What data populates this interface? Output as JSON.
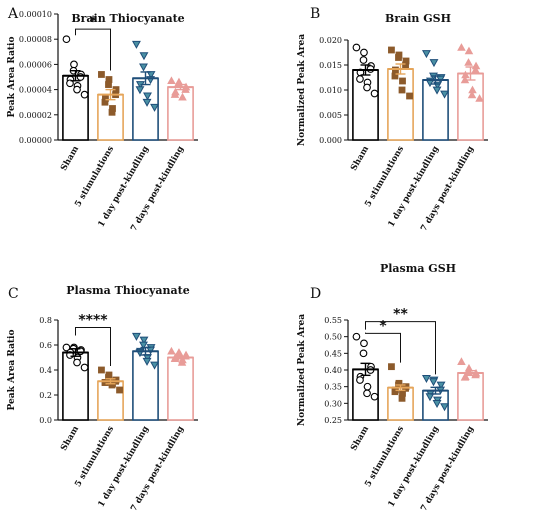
{
  "colors": {
    "Sham": "#000000",
    "5 stimulations": "#E5A55A",
    "1 day post-kindling": "#1F4E79",
    "7 days post-kindling": "#E89C98",
    "marker_brown": "#8C5A2B",
    "marker_teal": "#4A90A4",
    "marker_pink": "#E89C98",
    "marker_white": "#FFFFFF"
  },
  "chart_data": [
    {
      "type": "bar",
      "panel": "A",
      "title": "Brain Thiocyanate",
      "ylabel": "Peak Area Ratio",
      "ylim": [
        0,
        0.0001
      ],
      "yticks": [
        "0.00000",
        "0.00002",
        "0.00004",
        "0.00006",
        "0.00008",
        "0.00010"
      ],
      "categories": [
        "Sham",
        "5 stimulations",
        "1 day post-kindling",
        "7 days post-kindling"
      ],
      "means": [
        5.1e-05,
        3.6e-05,
        4.9e-05,
        4.2e-05
      ],
      "sem": [
        4e-06,
        4e-06,
        5e-06,
        2e-06
      ],
      "points": [
        [
          8e-05,
          6e-05,
          5.5e-05,
          5.2e-05,
          5e-05,
          4.8e-05,
          4.5e-05,
          4.3e-05,
          4e-05,
          3.6e-05
        ],
        [
          5.2e-05,
          4.8e-05,
          4.4e-05,
          4e-05,
          3.6e-05,
          3.3e-05,
          3e-05,
          2.5e-05,
          2.2e-05
        ],
        [
          7.6e-05,
          6.7e-05,
          5.8e-05,
          5.2e-05,
          4.8e-05,
          4.4e-05,
          4e-05,
          3.5e-05,
          3e-05,
          2.6e-05
        ],
        [
          4.7e-05,
          4.6e-05,
          4.5e-05,
          4.2e-05,
          4e-05,
          3.8e-05,
          3.6e-05,
          3.4e-05
        ]
      ],
      "significance": [
        {
          "from": 0,
          "to": 1,
          "label": "*"
        }
      ]
    },
    {
      "type": "bar",
      "panel": "B",
      "title": "Brain GSH",
      "ylabel": "Normalized Peak Area",
      "ylim": [
        0,
        0.02
      ],
      "yticks": [
        "0.000",
        "0.005",
        "0.010",
        "0.015",
        "0.020"
      ],
      "categories": [
        "Sham",
        "5 stimulations",
        "1 day post-kindling",
        "7 days post-kindling"
      ],
      "means": [
        0.014,
        0.0142,
        0.012,
        0.0133
      ],
      "sem": [
        0.001,
        0.001,
        0.0008,
        0.0013
      ],
      "points": [
        [
          0.0185,
          0.0175,
          0.016,
          0.0148,
          0.0142,
          0.0135,
          0.0122,
          0.0115,
          0.0105,
          0.0093
        ],
        [
          0.018,
          0.017,
          0.0165,
          0.0158,
          0.015,
          0.014,
          0.0128,
          0.0118,
          0.01,
          0.0088
        ],
        [
          0.0173,
          0.0155,
          0.0128,
          0.0125,
          0.0122,
          0.0118,
          0.0115,
          0.011,
          0.01,
          0.0092
        ],
        [
          0.0185,
          0.0178,
          0.0155,
          0.0148,
          0.014,
          0.013,
          0.012,
          0.01,
          0.009,
          0.0083
        ]
      ],
      "significance": []
    },
    {
      "type": "bar",
      "panel": "C",
      "title": "Plasma Thiocyanate",
      "ylabel": "Peak Area Ratio",
      "ylim": [
        0,
        0.8
      ],
      "yticks": [
        "0.0",
        "0.2",
        "0.4",
        "0.6",
        "0.8"
      ],
      "categories": [
        "Sham",
        "5 stimulations",
        "1 day post-kindling",
        "7 days post-kindling"
      ],
      "means": [
        0.54,
        0.31,
        0.55,
        0.5
      ],
      "sem": [
        0.03,
        0.02,
        0.03,
        0.01
      ],
      "points": [
        [
          0.58,
          0.58,
          0.57,
          0.56,
          0.55,
          0.54,
          0.52,
          0.5,
          0.46,
          0.42
        ],
        [
          0.4,
          0.36,
          0.34,
          0.32,
          0.31,
          0.3,
          0.3,
          0.29,
          0.28,
          0.24
        ],
        [
          0.67,
          0.64,
          0.6,
          0.58,
          0.56,
          0.55,
          0.54,
          0.5,
          0.47,
          0.44
        ],
        [
          0.55,
          0.54,
          0.53,
          0.52,
          0.51,
          0.5,
          0.49,
          0.48,
          0.46
        ]
      ],
      "significance": [
        {
          "from": 0,
          "to": 1,
          "label": "****"
        }
      ]
    },
    {
      "type": "bar",
      "panel": "D",
      "title": "Plasma GSH",
      "ylabel": "Normalized Peak Area",
      "ylim": [
        0.25,
        0.55
      ],
      "yticks": [
        "0.25",
        "0.30",
        "0.35",
        "0.40",
        "0.45",
        "0.50",
        "0.55"
      ],
      "categories": [
        "Sham",
        "5 stimulations",
        "1 day post-kindling",
        "7 days post-kindling"
      ],
      "means": [
        0.402,
        0.347,
        0.338,
        0.391
      ],
      "sem": [
        0.018,
        0.008,
        0.01,
        0.007
      ],
      "points": [
        [
          0.5,
          0.48,
          0.45,
          0.41,
          0.4,
          0.38,
          0.37,
          0.35,
          0.33,
          0.32
        ],
        [
          0.41,
          0.36,
          0.355,
          0.35,
          0.345,
          0.34,
          0.335,
          0.33,
          0.315
        ],
        [
          0.375,
          0.37,
          0.365,
          0.355,
          0.34,
          0.33,
          0.32,
          0.31,
          0.3,
          0.29
        ],
        [
          0.425,
          0.405,
          0.395,
          0.39,
          0.385,
          0.38,
          0.378
        ]
      ],
      "significance": [
        {
          "from": 0,
          "to": 1,
          "label": "*"
        },
        {
          "from": 0,
          "to": 2,
          "label": "**"
        }
      ]
    }
  ]
}
